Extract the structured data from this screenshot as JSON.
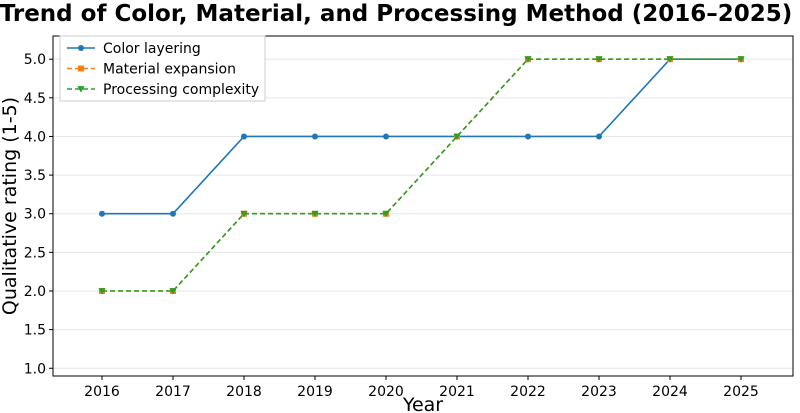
{
  "chart_data": {
    "type": "line",
    "title": "Trend of Color, Material, and Processing Method (2016–2025)",
    "xlabel": "Year",
    "ylabel": "Qualitative rating (1-5)",
    "x": [
      2016,
      2017,
      2018,
      2019,
      2020,
      2021,
      2022,
      2023,
      2024,
      2025
    ],
    "ylim": [
      0.9,
      5.3
    ],
    "yticks": [
      "1.0",
      "1.5",
      "2.0",
      "2.5",
      "3.0",
      "3.5",
      "4.0",
      "4.5",
      "5.0"
    ],
    "grid": "horizontal",
    "legend_position": "top-left",
    "series": [
      {
        "name": "Color layering",
        "values": [
          3,
          3,
          4,
          4,
          4,
          4,
          4,
          4,
          5,
          5
        ],
        "color": "#1f77b4",
        "linestyle": "solid",
        "marker": "circle"
      },
      {
        "name": "Material expansion",
        "values": [
          2,
          2,
          3,
          3,
          3,
          4,
          5,
          5,
          5,
          5
        ],
        "color": "#ff7f0e",
        "linestyle": "dashed",
        "marker": "square"
      },
      {
        "name": "Processing complexity",
        "values": [
          2,
          2,
          3,
          3,
          3,
          4,
          5,
          5,
          5,
          5
        ],
        "color": "#2ca02c",
        "linestyle": "dashed",
        "marker": "triangle-down"
      }
    ]
  }
}
